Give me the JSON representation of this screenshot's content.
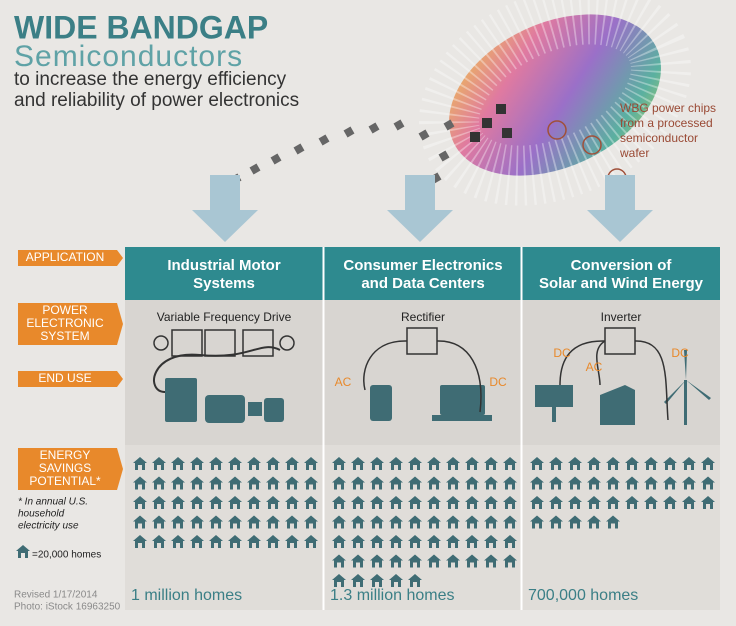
{
  "header": {
    "title": "WIDE BANDGAP",
    "subtitle": "Semiconductors",
    "tagline": [
      "to increase the energy efficiency",
      "and reliability of power electronics"
    ]
  },
  "wafer_caption": [
    "WBG power chips",
    "from a processed",
    "semiconductor",
    "wafer"
  ],
  "row_labels": {
    "application": "APPLICATION",
    "system": [
      "POWER",
      "ELECTRONIC",
      "SYSTEM"
    ],
    "end_use": "END USE",
    "savings": [
      "ENERGY",
      "SAVINGS",
      "POTENTIAL*"
    ]
  },
  "footnote": [
    "* In annual U.S.",
    "household",
    "electricity use"
  ],
  "legend": {
    "label": "=20,000 homes",
    "homes_per_icon": 20000
  },
  "columns": [
    {
      "application": [
        "Industrial Motor",
        "Systems"
      ],
      "system": "Variable Frequency Drive",
      "flow_labels": [],
      "homes": 1000000,
      "savings": "1 million homes"
    },
    {
      "application": [
        "Consumer Electronics",
        "and Data Centers"
      ],
      "system": "Rectifier",
      "flow_labels": [
        "AC",
        "DC"
      ],
      "homes": 1300000,
      "savings": "1.3 million homes"
    },
    {
      "application": [
        "Conversion of",
        "Solar and Wind Energy"
      ],
      "system": "Inverter",
      "flow_labels": [
        "DC",
        "AC",
        "DC"
      ],
      "homes": 700000,
      "savings": "700,000 homes"
    }
  ],
  "credits": [
    "Revised 1/17/2014",
    "Photo: iStock 16963250"
  ]
}
